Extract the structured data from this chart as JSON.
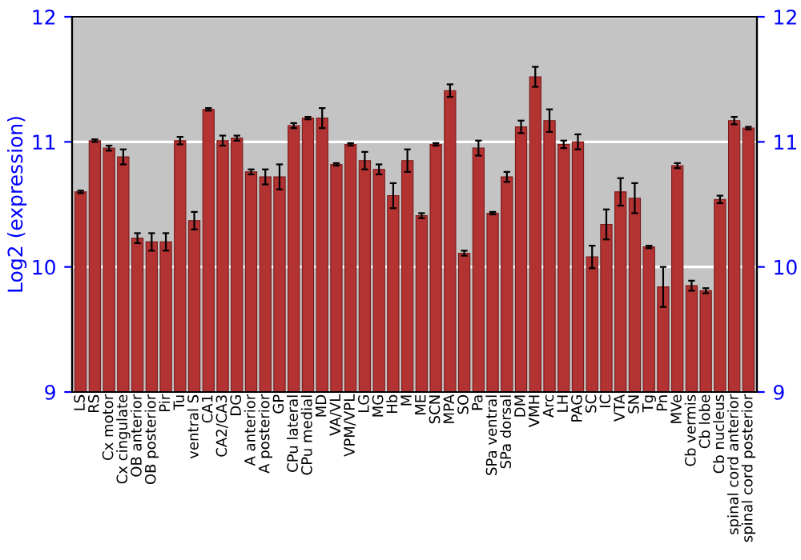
{
  "chart_data": {
    "type": "bar",
    "ylabel": "Log2 (expression)",
    "categories": [
      "LS",
      "RS",
      "Cx motor",
      "Cx cingulate",
      "OB anterior",
      "OB posterior",
      "Pir",
      "Tu",
      "ventral S",
      "CA1",
      "CA2/CA3",
      "DG",
      "A anterior",
      "A posterior",
      "GP",
      "CPu lateral",
      "CPu medial",
      "MD",
      "VA/VL",
      "VPM/VPL",
      "LG",
      "MG",
      "Hb",
      "M",
      "ME",
      "SCN",
      "MPA",
      "SO",
      "Pa",
      "SPa ventral",
      "SPa dorsal",
      "DM",
      "VMH",
      "Arc",
      "LH",
      "PAG",
      "SC",
      "IC",
      "VTA",
      "SN",
      "Tg",
      "Pn",
      "MVe",
      "Cb vermis",
      "Cb lobe",
      "Cb nucleus",
      "spinal cord anterior",
      "spinal cord posterior"
    ],
    "values": [
      10.6,
      11.01,
      10.95,
      10.88,
      10.23,
      10.2,
      10.2,
      11.01,
      10.37,
      11.26,
      11.01,
      11.03,
      10.76,
      10.72,
      10.72,
      11.13,
      11.19,
      11.19,
      10.82,
      10.98,
      10.85,
      10.78,
      10.57,
      10.85,
      10.41,
      10.98,
      11.41,
      10.11,
      10.95,
      10.43,
      10.72,
      11.12,
      11.52,
      11.17,
      10.98,
      11.0,
      10.08,
      10.34,
      10.6,
      10.55,
      10.16,
      9.84,
      10.81,
      9.85,
      9.81,
      10.54,
      11.17,
      11.11
    ],
    "errors": [
      0.01,
      0.01,
      0.02,
      0.06,
      0.04,
      0.07,
      0.07,
      0.03,
      0.07,
      0.01,
      0.04,
      0.02,
      0.02,
      0.06,
      0.1,
      0.02,
      0.01,
      0.08,
      0.01,
      0.01,
      0.07,
      0.04,
      0.1,
      0.09,
      0.02,
      0.01,
      0.05,
      0.02,
      0.06,
      0.01,
      0.04,
      0.05,
      0.08,
      0.09,
      0.03,
      0.06,
      0.09,
      0.12,
      0.11,
      0.12,
      0.01,
      0.16,
      0.02,
      0.04,
      0.02,
      0.03,
      0.03,
      0.01
    ],
    "color": "#b33232",
    "ylim": [
      9,
      12
    ],
    "yticks": [
      9,
      10,
      11,
      12
    ],
    "y2lim": [
      9,
      12
    ],
    "y2ticks": [
      9,
      10,
      11,
      12
    ],
    "grid": "y",
    "legend": false
  }
}
